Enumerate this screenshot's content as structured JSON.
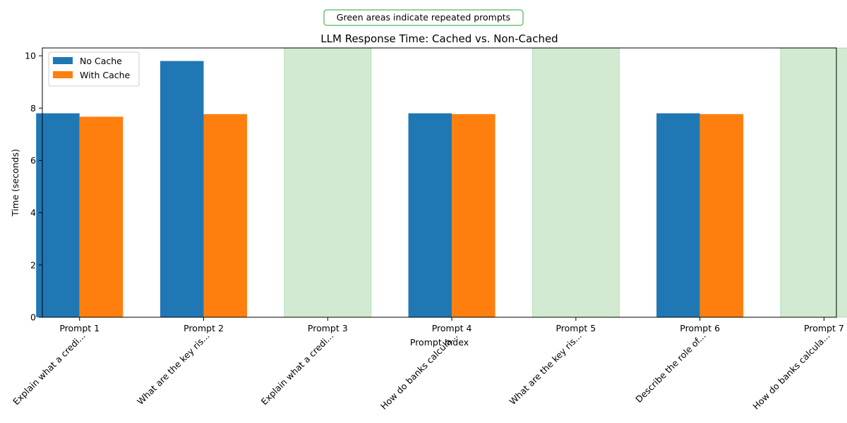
{
  "chart_data": {
    "type": "bar",
    "title": "LLM Response Time: Cached vs. Non-Cached",
    "annotation": "Green areas indicate repeated prompts",
    "xlabel": "Prompt Index",
    "ylabel": "Time (seconds)",
    "ylim": [
      0,
      10.3
    ],
    "yticks": [
      0,
      2,
      4,
      6,
      8,
      10
    ],
    "categories": [
      "Prompt 1",
      "Prompt 2",
      "Prompt 3",
      "Prompt 4",
      "Prompt 5",
      "Prompt 6",
      "Prompt 7"
    ],
    "prompt_snippets": [
      "Explain what a credi...",
      "What are the key ris...",
      "Explain what a credi...",
      "How do banks calcula...",
      "What are the key ris...",
      "Describe the role of...",
      "How do banks calcula..."
    ],
    "repeated": [
      false,
      false,
      true,
      false,
      true,
      false,
      true
    ],
    "series": [
      {
        "name": "No Cache",
        "color": "#1f77b4",
        "values": [
          7.8,
          9.8,
          null,
          7.8,
          null,
          7.8,
          null
        ]
      },
      {
        "name": "With Cache",
        "color": "#ff7f0e",
        "values": [
          7.67,
          7.77,
          null,
          7.77,
          null,
          7.77,
          null
        ]
      }
    ],
    "highlight_color": "#2ca02c",
    "grid": false,
    "legend_position": "top-left"
  }
}
